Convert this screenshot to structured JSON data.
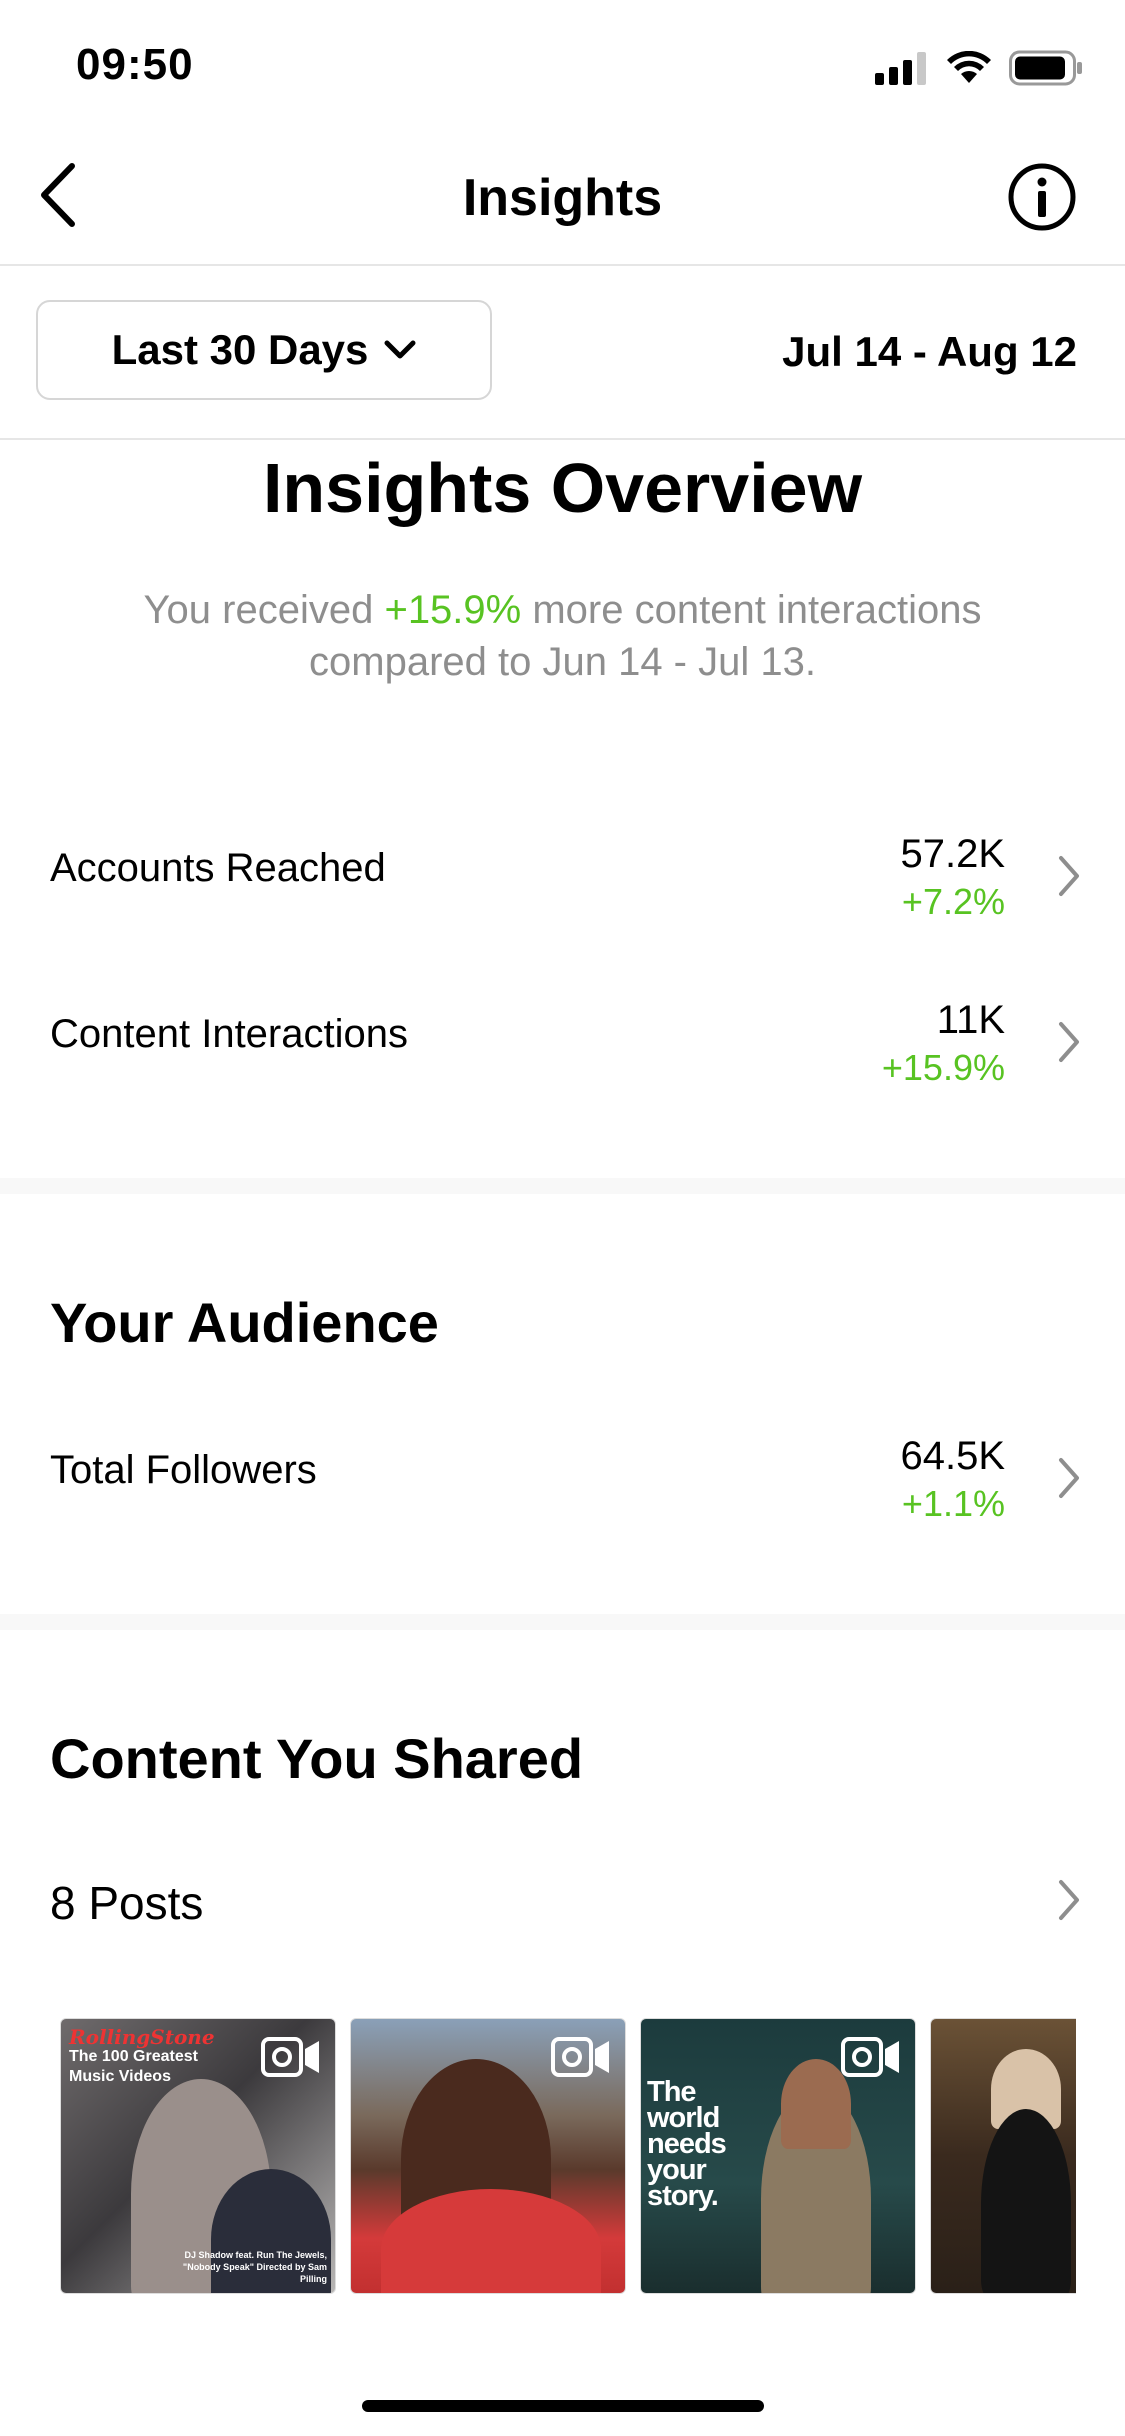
{
  "status_bar": {
    "time": "09:50"
  },
  "nav": {
    "title": "Insights"
  },
  "filter": {
    "range_label": "Last 30 Days",
    "date_range": "Jul 14 - Aug 12"
  },
  "overview": {
    "title": "Insights Overview",
    "summary_prefix": "You received ",
    "summary_highlight": "+15.9%",
    "summary_suffix": " more content interactions compared to Jun 14 - Jul 13."
  },
  "metrics": [
    {
      "label": "Accounts Reached",
      "value": "57.2K",
      "delta": "+7.2%"
    },
    {
      "label": "Content Interactions",
      "value": "11K",
      "delta": "+15.9%"
    }
  ],
  "audience": {
    "title": "Your Audience",
    "metric": {
      "label": "Total Followers",
      "value": "64.5K",
      "delta": "+1.1%"
    }
  },
  "content": {
    "title": "Content You Shared",
    "posts_label": "8 Posts",
    "thumb1": {
      "brand": "RollingStone",
      "title": "The 100 Greatest Music Videos",
      "credit": "DJ Shadow feat. Run The Jewels, \"Nobody Speak\" Directed by Sam Pilling"
    },
    "thumb3": {
      "text": "The world needs your story."
    }
  },
  "colors": {
    "positive": "#58c322",
    "muted": "#8e8e8e",
    "divider": "#e6e6e6"
  }
}
